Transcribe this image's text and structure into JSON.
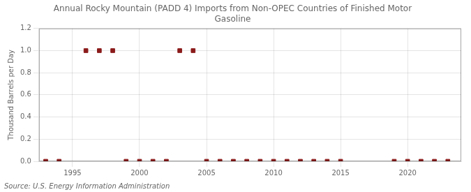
{
  "chart_data": {
    "type": "scatter",
    "title": "Annual Rocky Mountain (PADD 4) Imports from Non-OPEC Countries of Finished Motor\nGasoline",
    "ylabel": "Thousand Barrels per Day",
    "annotation": "Source: U.S. Energy Information Administration",
    "x": [
      1993,
      1994,
      1996,
      1997,
      1998,
      1999,
      2000,
      2001,
      2002,
      2003,
      2004,
      2005,
      2006,
      2007,
      2008,
      2009,
      2010,
      2011,
      2012,
      2013,
      2014,
      2015,
      2019,
      2020,
      2021,
      2022,
      2023
    ],
    "values": [
      0.0,
      0.0,
      1.0,
      1.0,
      1.0,
      0.0,
      0.0,
      0.0,
      0.0,
      1.0,
      1.0,
      0.0,
      0.0,
      0.0,
      0.0,
      0.0,
      0.0,
      0.0,
      0.0,
      0.0,
      0.0,
      0.0,
      0.0,
      0.0,
      0.0,
      0.0,
      0.0
    ],
    "color": "#8b1a1a",
    "marker": "square",
    "xlim": [
      1992.5,
      2024
    ],
    "xticks": [
      1995,
      2000,
      2005,
      2010,
      2015,
      2020
    ],
    "ylim": [
      0.0,
      1.2
    ],
    "yticks": [
      {
        "value": 0.0,
        "label": "0.0"
      },
      0.2,
      0.4,
      0.6,
      0.8,
      {
        "value": 1.0,
        "label": "1.0"
      },
      1.2
    ],
    "grid": true
  }
}
